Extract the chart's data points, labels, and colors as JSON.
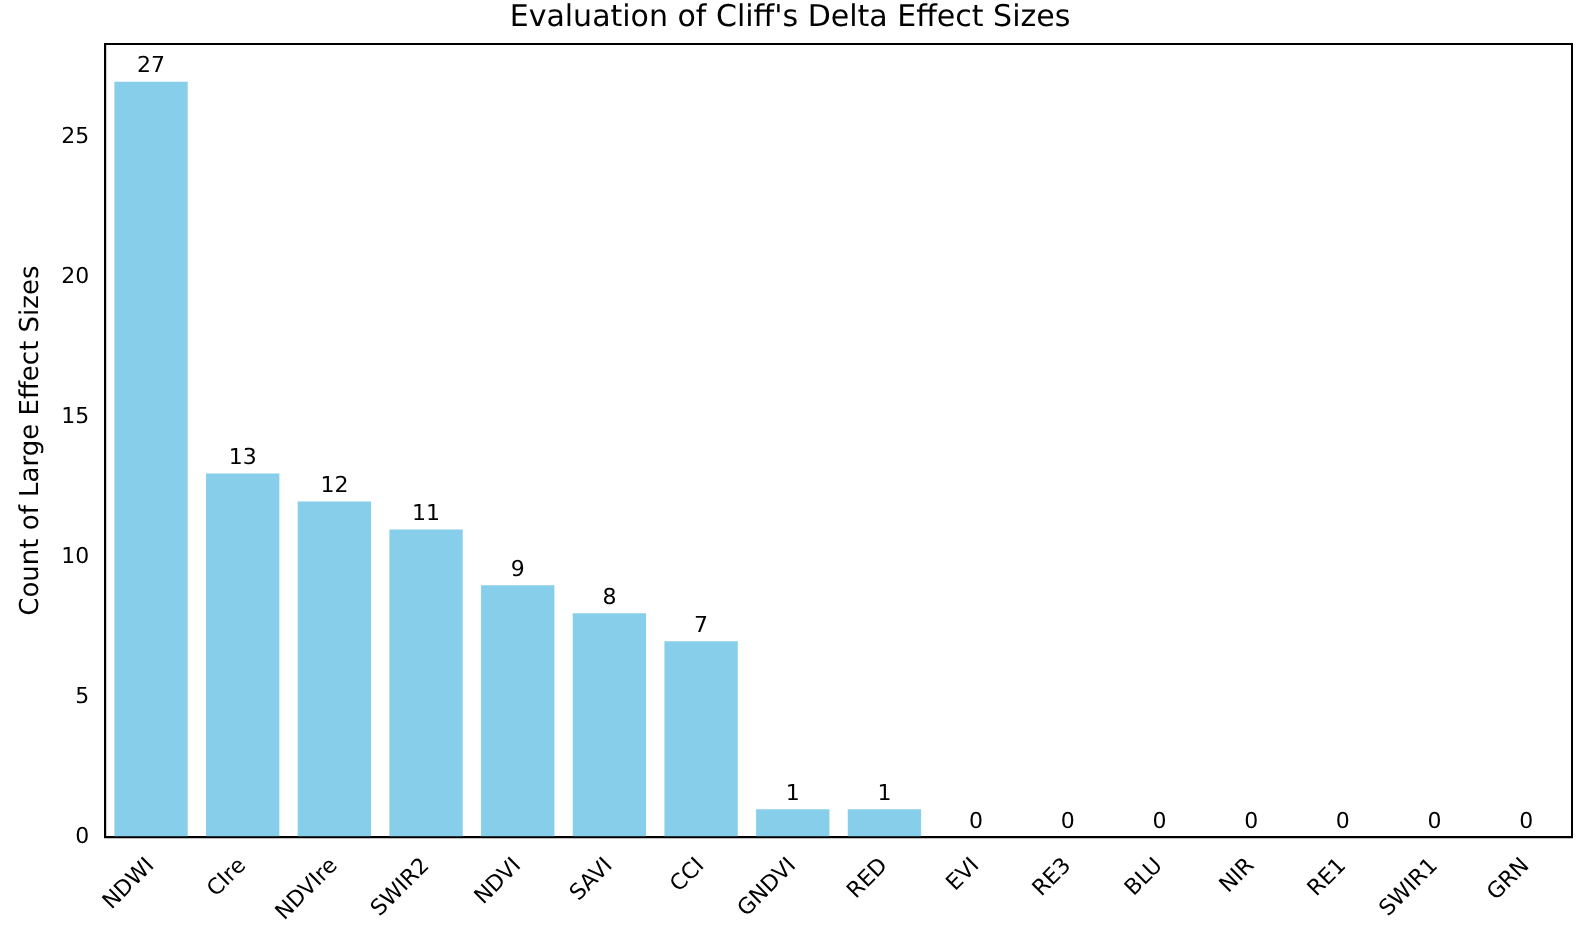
{
  "chart_data": {
    "type": "bar",
    "title": "Evaluation of Cliff's Delta Effect Sizes",
    "ylabel": "Count of Large Effect Sizes",
    "categories": [
      "NDWI",
      "CIre",
      "NDVIre",
      "SWIR2",
      "NDVI",
      "SAVI",
      "CCI",
      "GNDVI",
      "RED",
      "EVI",
      "RE3",
      "BLU",
      "NIR",
      "RE1",
      "SWIR1",
      "GRN"
    ],
    "values": [
      27,
      13,
      12,
      11,
      9,
      8,
      7,
      1,
      1,
      0,
      0,
      0,
      0,
      0,
      0,
      0
    ],
    "color": "#87ceeb",
    "ylim": [
      0,
      28.35
    ],
    "yticks": [
      0,
      5,
      10,
      15,
      20,
      25
    ],
    "data_labels": true,
    "grid": false,
    "legend": false
  }
}
